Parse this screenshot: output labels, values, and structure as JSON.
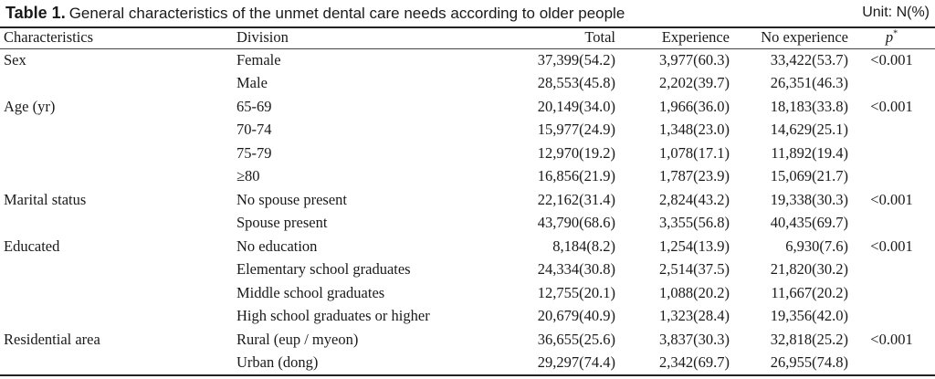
{
  "caption": {
    "label": "Table 1.",
    "text": "General characteristics of the unmet dental care needs according to older people",
    "unit": "Unit: N(%)"
  },
  "columns": {
    "characteristics": "Characteristics",
    "division": "Division",
    "total": "Total",
    "experience": "Experience",
    "no_experience": "No experience",
    "p": "p",
    "p_mark": "*"
  },
  "rows": [
    {
      "characteristic": "Sex",
      "division": "Female",
      "total": "37,399(54.2)",
      "experience": "3,977(60.3)",
      "no_experience": "33,422(53.7)",
      "p": "<0.001"
    },
    {
      "characteristic": "",
      "division": "Male",
      "total": "28,553(45.8)",
      "experience": "2,202(39.7)",
      "no_experience": "26,351(46.3)",
      "p": ""
    },
    {
      "characteristic": "Age (yr)",
      "division": "65-69",
      "total": "20,149(34.0)",
      "experience": "1,966(36.0)",
      "no_experience": "18,183(33.8)",
      "p": "<0.001"
    },
    {
      "characteristic": "",
      "division": "70-74",
      "total": "15,977(24.9)",
      "experience": "1,348(23.0)",
      "no_experience": "14,629(25.1)",
      "p": ""
    },
    {
      "characteristic": "",
      "division": "75-79",
      "total": "12,970(19.2)",
      "experience": "1,078(17.1)",
      "no_experience": "11,892(19.4)",
      "p": ""
    },
    {
      "characteristic": "",
      "division": "≥80",
      "total": "16,856(21.9)",
      "experience": "1,787(23.9)",
      "no_experience": "15,069(21.7)",
      "p": ""
    },
    {
      "characteristic": "Marital status",
      "division": "No spouse present",
      "total": "22,162(31.4)",
      "experience": "2,824(43.2)",
      "no_experience": "19,338(30.3)",
      "p": "<0.001"
    },
    {
      "characteristic": "",
      "division": "Spouse present",
      "total": "43,790(68.6)",
      "experience": "3,355(56.8)",
      "no_experience": "40,435(69.7)",
      "p": ""
    },
    {
      "characteristic": "Educated",
      "division": "No education",
      "total": "8,184(8.2)",
      "experience": "1,254(13.9)",
      "no_experience": "6,930(7.6)",
      "p": "<0.001"
    },
    {
      "characteristic": "",
      "division": "Elementary school graduates",
      "total": "24,334(30.8)",
      "experience": "2,514(37.5)",
      "no_experience": "21,820(30.2)",
      "p": ""
    },
    {
      "characteristic": "",
      "division": "Middle school graduates",
      "total": "12,755(20.1)",
      "experience": "1,088(20.2)",
      "no_experience": "11,667(20.2)",
      "p": ""
    },
    {
      "characteristic": "",
      "division": "High school graduates or higher",
      "total": "20,679(40.9)",
      "experience": "1,323(28.4)",
      "no_experience": "19,356(42.0)",
      "p": ""
    },
    {
      "characteristic": "Residential area",
      "division": "Rural (eup / myeon)",
      "total": "36,655(25.6)",
      "experience": "3,837(30.3)",
      "no_experience": "32,818(25.2)",
      "p": "<0.001"
    },
    {
      "characteristic": "",
      "division": "Urban (dong)",
      "total": "29,297(74.4)",
      "experience": "2,342(69.7)",
      "no_experience": "26,955(74.8)",
      "p": ""
    }
  ]
}
